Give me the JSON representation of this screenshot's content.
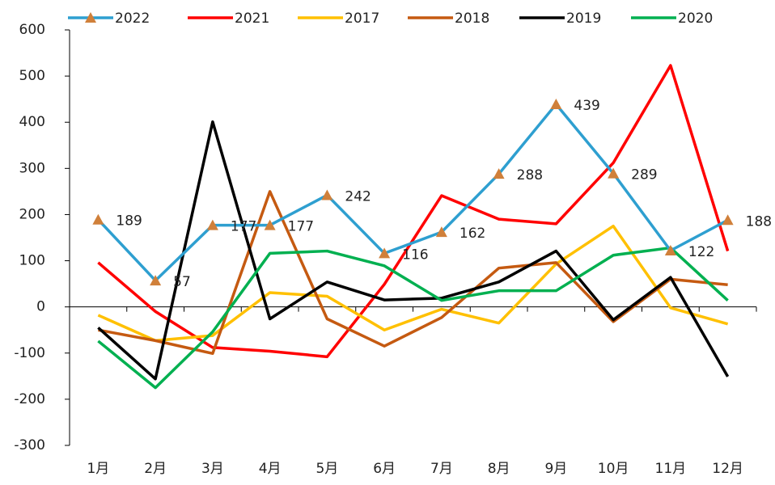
{
  "chart_data": {
    "type": "line",
    "categories": [
      "1月",
      "2月",
      "3月",
      "4月",
      "5月",
      "6月",
      "7月",
      "8月",
      "9月",
      "10月",
      "11月",
      "12月"
    ],
    "series": [
      {
        "name": "2022",
        "color": "#2e9fd0",
        "marker": "triangle",
        "marker_color": "#d0803a",
        "data_labels": true,
        "values": [
          189,
          57,
          177,
          177,
          242,
          116,
          162,
          288,
          439,
          289,
          122,
          188
        ]
      },
      {
        "name": "2021",
        "color": "#ff0000",
        "values": [
          96,
          -10,
          -88,
          -96,
          -108,
          49,
          241,
          190,
          180,
          312,
          523,
          121
        ]
      },
      {
        "name": "2017",
        "color": "#ffc000",
        "values": [
          -18,
          -73,
          -62,
          31,
          23,
          -50,
          -5,
          -35,
          93,
          175,
          -2,
          -37
        ]
      },
      {
        "name": "2018",
        "color": "#c55a11",
        "values": [
          -50,
          -73,
          -101,
          250,
          -26,
          -85,
          -23,
          84,
          96,
          -32,
          60,
          48
        ]
      },
      {
        "name": "2019",
        "color": "#000000",
        "values": [
          -45,
          -156,
          401,
          -26,
          54,
          15,
          19,
          54,
          121,
          -28,
          64,
          -151
        ]
      },
      {
        "name": "2020",
        "color": "#00b050",
        "values": [
          -74,
          -175,
          -54,
          116,
          121,
          89,
          14,
          35,
          35,
          112,
          128,
          14
        ]
      }
    ],
    "ylim": [
      -300,
      600
    ],
    "yticks": [
      -300,
      -200,
      -100,
      0,
      100,
      200,
      300,
      400,
      500,
      600
    ],
    "legend": "top"
  }
}
